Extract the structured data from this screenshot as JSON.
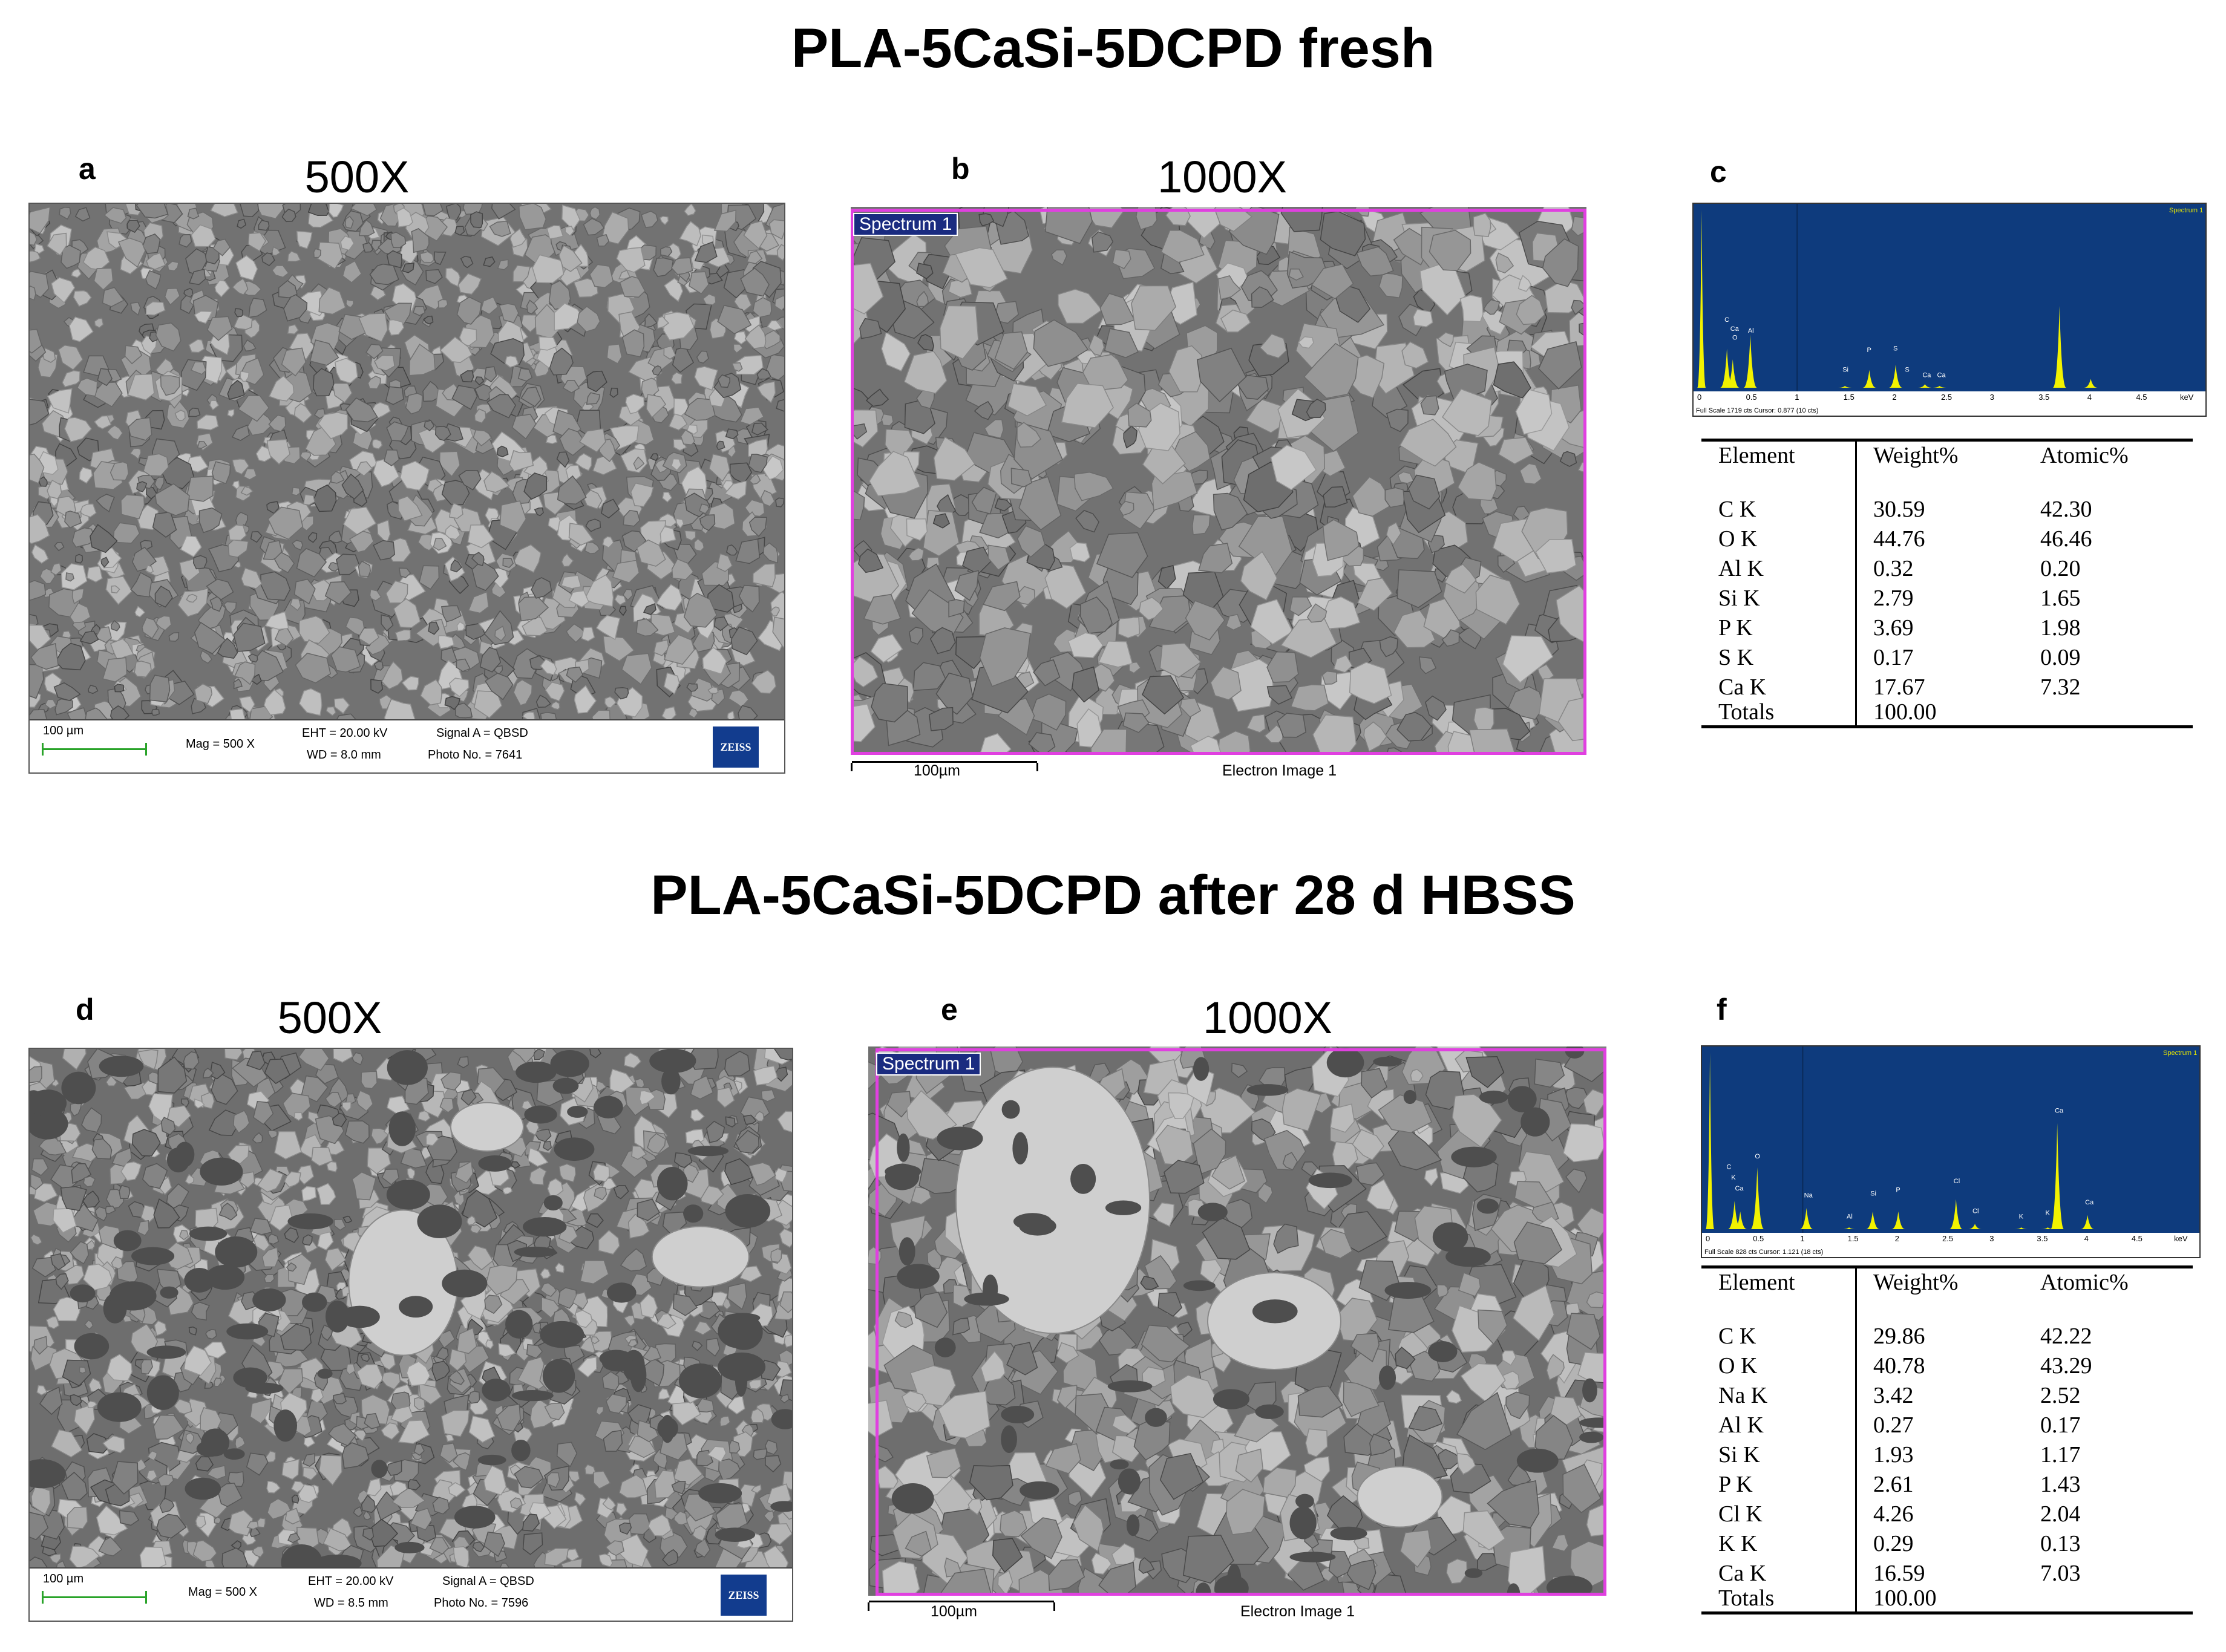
{
  "figure": {
    "top_title": "PLA-5CaSi-5DCPD fresh",
    "bottom_title": "PLA-5CaSi-5DCPD after 28 d HBSS",
    "panels": {
      "a": {
        "letter": "a",
        "mag": "500X",
        "info": {
          "scale": "100 µm",
          "mag": "Mag =    500 X",
          "eht": "EHT = 20.00 kV",
          "wd": "WD =  8.0 mm",
          "signal": "Signal A = QBSD",
          "photo": "Photo No. = 7641",
          "logo": "ZEISS"
        }
      },
      "b": {
        "letter": "b",
        "mag": "1000X",
        "spectrum": "Spectrum 1",
        "scale": "100µm",
        "caption": "Electron Image 1"
      },
      "c": {
        "letter": "c",
        "spectrum_tag": "Spectrum 1",
        "peak_labels": [
          "C",
          "Ca",
          "O",
          "Al",
          "Si",
          "P",
          "S",
          "S",
          "Ca",
          "Ca"
        ],
        "axis_ticks": [
          "0",
          "0.5",
          "1",
          "1.5",
          "2",
          "2.5",
          "3",
          "3.5",
          "4",
          "4.5",
          "keV"
        ],
        "footer": "Full Scale 1719 cts Cursor: 0.877  (10 cts)",
        "table": {
          "headers": [
            "Element",
            "Weight%",
            "Atomic%"
          ],
          "rows": [
            [
              "C K",
              "30.59",
              "42.30"
            ],
            [
              "O K",
              "44.76",
              "46.46"
            ],
            [
              "Al K",
              "0.32",
              "0.20"
            ],
            [
              "Si K",
              "2.79",
              "1.65"
            ],
            [
              "P K",
              "3.69",
              "1.98"
            ],
            [
              "S K",
              "0.17",
              "0.09"
            ],
            [
              "Ca K",
              "17.67",
              "7.32"
            ]
          ],
          "total_label": "Totals",
          "total_value": "100.00"
        }
      },
      "d": {
        "letter": "d",
        "mag": "500X",
        "info": {
          "scale": "100 µm",
          "mag": "Mag =    500 X",
          "eht": "EHT = 20.00 kV",
          "wd": "WD =  8.5 mm",
          "signal": "Signal A = QBSD",
          "photo": "Photo No. = 7596",
          "logo": "ZEISS"
        }
      },
      "e": {
        "letter": "e",
        "mag": "1000X",
        "spectrum": "Spectrum 1",
        "scale": "100µm",
        "caption": "Electron Image 1"
      },
      "f": {
        "letter": "f",
        "spectrum_tag": "Spectrum 1",
        "peak_labels": [
          "C",
          "K",
          "Ca",
          "O",
          "Na",
          "Al",
          "Si",
          "P",
          "Cl",
          "Cl",
          "K",
          "K",
          "Ca",
          "Ca"
        ],
        "axis_ticks": [
          "0",
          "0.5",
          "1",
          "1.5",
          "2",
          "2.5",
          "3",
          "3.5",
          "4",
          "4.5",
          "keV"
        ],
        "footer": "Full Scale 828 cts Cursor: 1.121  (18 cts)",
        "table": {
          "headers": [
            "Element",
            "Weight%",
            "Atomic%"
          ],
          "rows": [
            [
              "C K",
              "29.86",
              "42.22"
            ],
            [
              "O K",
              "40.78",
              "43.29"
            ],
            [
              "Na K",
              "3.42",
              "2.52"
            ],
            [
              "Al K",
              "0.27",
              "0.17"
            ],
            [
              "Si K",
              "1.93",
              "1.17"
            ],
            [
              "P K",
              "2.61",
              "1.43"
            ],
            [
              "Cl K",
              "4.26",
              "2.04"
            ],
            [
              "K K",
              "0.29",
              "0.13"
            ],
            [
              "Ca K",
              "16.59",
              "7.03"
            ]
          ],
          "total_label": "Totals",
          "total_value": "100.00"
        }
      }
    }
  }
}
